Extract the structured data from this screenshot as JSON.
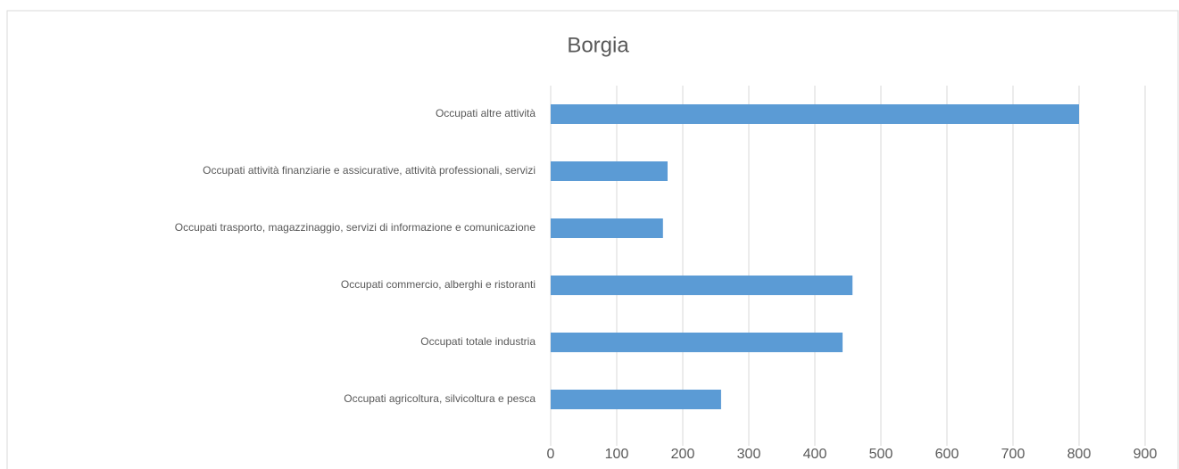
{
  "chart_data": {
    "type": "bar",
    "orientation": "horizontal",
    "title": "Borgia",
    "categories": [
      "Occupati altre attività",
      "Occupati attività finanziarie e assicurative, attività professionali, servizi",
      "Occupati trasporto, magazzinaggio, servizi di informazione e comunicazione",
      "Occupati commercio, alberghi e ristoranti",
      "Occupati totale industria",
      "Occupati agricoltura, silvicoltura e pesca"
    ],
    "values": [
      800,
      177,
      170,
      457,
      442,
      258
    ],
    "color": "#5b9bd5",
    "xlim": [
      0,
      900
    ],
    "xticks": [
      0,
      100,
      200,
      300,
      400,
      500,
      600,
      700,
      800,
      900
    ],
    "grid": true
  }
}
